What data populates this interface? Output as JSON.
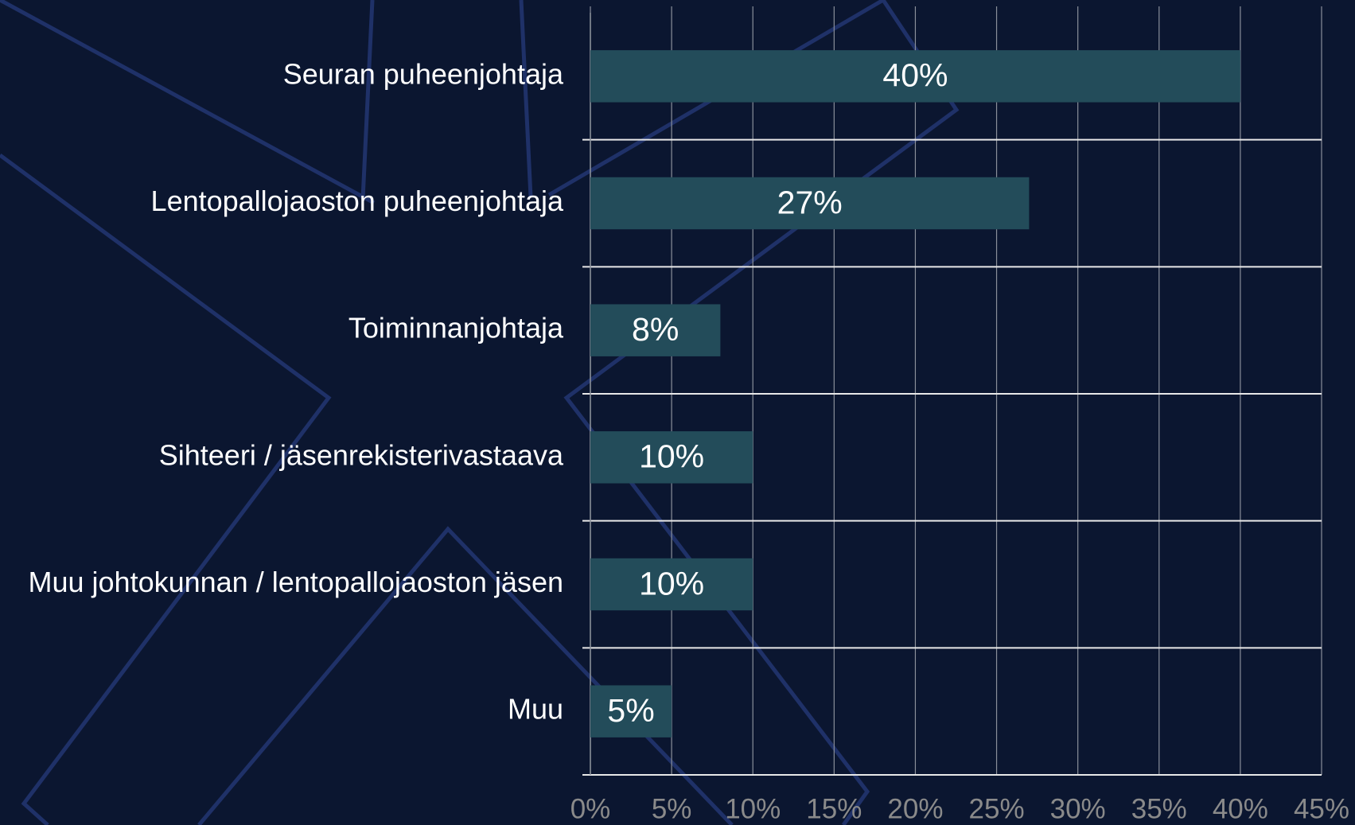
{
  "chart_data": {
    "type": "bar",
    "orientation": "horizontal",
    "categories": [
      "Seuran puheenjohtaja",
      "Lentopallojaoston puheenjohtaja",
      "Toiminnanjohtaja",
      "Sihteeri / jäsenrekisterivastaava",
      "Muu johtokunnan / lentopallojaoston jäsen",
      "Muu"
    ],
    "values": [
      40,
      27,
      8,
      10,
      10,
      5
    ],
    "value_labels": [
      "40%",
      "27%",
      "8%",
      "10%",
      "10%",
      "5%"
    ],
    "color": "#234c5a",
    "xlim": [
      0,
      45
    ],
    "xticks": [
      {
        "value": 0,
        "label": "0%"
      },
      {
        "value": 5,
        "label": "5%"
      },
      {
        "value": 10,
        "label": "10%"
      },
      {
        "value": 15,
        "label": "15%"
      },
      {
        "value": 20,
        "label": "20%"
      },
      {
        "value": 25,
        "label": "25%"
      },
      {
        "value": 30,
        "label": "30%"
      },
      {
        "value": 35,
        "label": "35%"
      },
      {
        "value": 40,
        "label": "40%"
      },
      {
        "value": 45,
        "label": "45%"
      }
    ],
    "grid": true
  }
}
